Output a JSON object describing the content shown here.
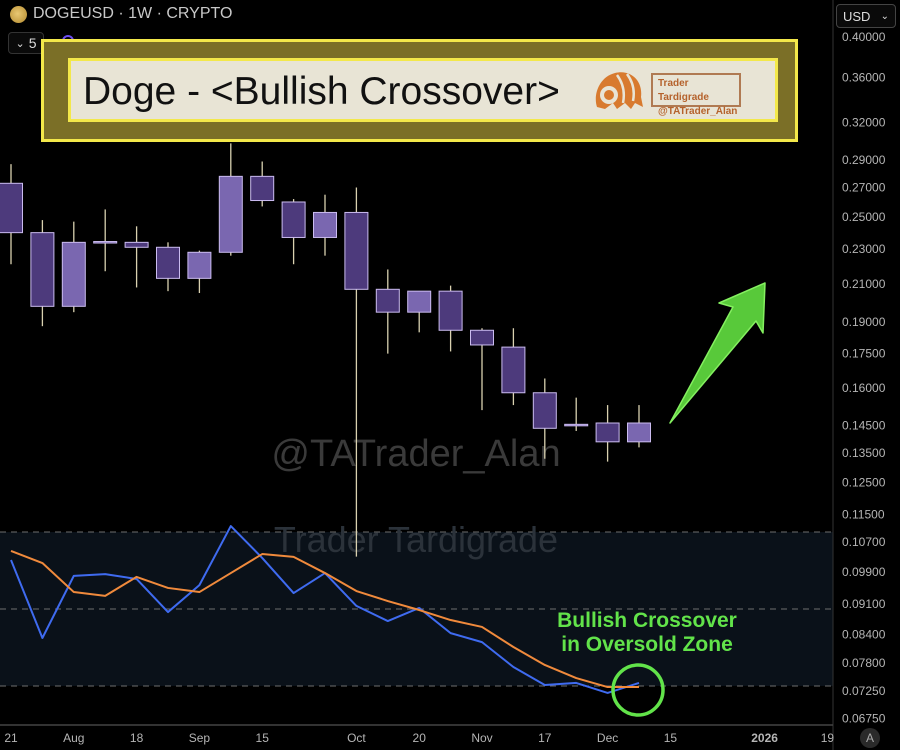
{
  "header": {
    "symbol_line": "DOGEUSD · 1W · CRYPTO",
    "indicator_toggle": "5",
    "currency": "USD",
    "auto_scale": "A"
  },
  "banner": {
    "title": "Doge - <Bullish Crossover>",
    "logo_line1": "Trader Tardigrade",
    "logo_line2": "@TATrader_Alan"
  },
  "watermarks": {
    "handle": "@TATrader_Alan",
    "brand": "Trader Tardigrade"
  },
  "annotation": {
    "line1": "Bullish Crossover",
    "line2": "in Oversold Zone"
  },
  "colors": {
    "bear_body": "#4d3a7c",
    "bull_body": "#7a67b0",
    "body_border": "#cbbcf0",
    "wick": "#d9d1b0",
    "fast_line": "#3f6bf0",
    "slow_line": "#f08a3c",
    "annotation": "#62e34a",
    "banner_border": "#f3e84a"
  },
  "chart_data": {
    "type": "candlestick",
    "y_scale": "log",
    "ylim": [
      0.0675,
      0.4
    ],
    "y_tick_labels": [
      "0.40000",
      "0.36000",
      "0.32000",
      "0.29000",
      "0.27000",
      "0.25000",
      "0.23000",
      "0.21000",
      "0.19000",
      "0.17500",
      "0.16000",
      "0.14500",
      "0.13500",
      "0.12500",
      "0.11500",
      "0.10700",
      "0.09900",
      "0.09100",
      "0.08400",
      "0.07800",
      "0.07250",
      "0.06750"
    ],
    "x_tick_labels": [
      {
        "date": "2025-07-21",
        "label": "21"
      },
      {
        "date": "2025-08-04",
        "label": "Aug"
      },
      {
        "date": "2025-08-18",
        "label": "18"
      },
      {
        "date": "2025-09-01",
        "label": "Sep"
      },
      {
        "date": "2025-09-15",
        "label": "15"
      },
      {
        "date": "2025-10-06",
        "label": "Oct"
      },
      {
        "date": "2025-10-20",
        "label": "20"
      },
      {
        "date": "2025-11-03",
        "label": "Nov"
      },
      {
        "date": "2025-11-17",
        "label": "17"
      },
      {
        "date": "2025-12-01",
        "label": "Dec"
      },
      {
        "date": "2025-12-15",
        "label": "15"
      },
      {
        "date": "2026-01-05",
        "label": "2026"
      },
      {
        "date": "2026-01-19",
        "label": "19"
      }
    ],
    "candles": [
      {
        "date": "2025-07-21",
        "o": 0.273,
        "h": 0.287,
        "l": 0.221,
        "c": 0.24
      },
      {
        "date": "2025-07-28",
        "o": 0.24,
        "h": 0.248,
        "l": 0.188,
        "c": 0.198
      },
      {
        "date": "2025-08-04",
        "o": 0.198,
        "h": 0.247,
        "l": 0.195,
        "c": 0.234
      },
      {
        "date": "2025-08-11",
        "o": 0.234,
        "h": 0.255,
        "l": 0.217,
        "c": 0.2345
      },
      {
        "date": "2025-08-18",
        "o": 0.234,
        "h": 0.244,
        "l": 0.208,
        "c": 0.231
      },
      {
        "date": "2025-08-25",
        "o": 0.231,
        "h": 0.234,
        "l": 0.206,
        "c": 0.213
      },
      {
        "date": "2025-09-01",
        "o": 0.213,
        "h": 0.229,
        "l": 0.205,
        "c": 0.228
      },
      {
        "date": "2025-09-08",
        "o": 0.228,
        "h": 0.303,
        "l": 0.226,
        "c": 0.278
      },
      {
        "date": "2025-09-15",
        "o": 0.278,
        "h": 0.289,
        "l": 0.257,
        "c": 0.261
      },
      {
        "date": "2025-09-22",
        "o": 0.26,
        "h": 0.262,
        "l": 0.221,
        "c": 0.237
      },
      {
        "date": "2025-09-29",
        "o": 0.237,
        "h": 0.265,
        "l": 0.226,
        "c": 0.253
      },
      {
        "date": "2025-10-06",
        "o": 0.253,
        "h": 0.27,
        "l": 0.103,
        "c": 0.207
      },
      {
        "date": "2025-10-13",
        "o": 0.207,
        "h": 0.218,
        "l": 0.175,
        "c": 0.195
      },
      {
        "date": "2025-10-20",
        "o": 0.195,
        "h": 0.206,
        "l": 0.185,
        "c": 0.206
      },
      {
        "date": "2025-10-27",
        "o": 0.206,
        "h": 0.209,
        "l": 0.176,
        "c": 0.186
      },
      {
        "date": "2025-11-03",
        "o": 0.186,
        "h": 0.187,
        "l": 0.151,
        "c": 0.179
      },
      {
        "date": "2025-11-10",
        "o": 0.178,
        "h": 0.187,
        "l": 0.153,
        "c": 0.158
      },
      {
        "date": "2025-11-17",
        "o": 0.158,
        "h": 0.164,
        "l": 0.133,
        "c": 0.144
      },
      {
        "date": "2025-11-24",
        "o": 0.145,
        "h": 0.156,
        "l": 0.143,
        "c": 0.1455
      },
      {
        "date": "2025-12-01",
        "o": 0.146,
        "h": 0.153,
        "l": 0.132,
        "c": 0.139
      },
      {
        "date": "2025-12-08",
        "o": 0.139,
        "h": 0.153,
        "l": 0.137,
        "c": 0.146
      }
    ],
    "oscillator": {
      "levels": [
        80,
        50,
        20
      ],
      "series": [
        {
          "color": "#3f6bf0",
          "values": [
            69.1,
            38.7,
            62.9,
            63.6,
            61.7,
            48.8,
            59.3,
            82.3,
            69.9,
            56.2,
            64.0,
            51.2,
            45.3,
            50.4,
            40.6,
            37.1,
            27.4,
            20.4,
            21.2,
            17.3,
            21.2
          ]
        },
        {
          "color": "#f08a3c",
          "values": [
            72.6,
            67.9,
            56.6,
            55.1,
            62.5,
            58.2,
            56.6,
            64.0,
            71.4,
            70.3,
            64.0,
            57.0,
            53.1,
            49.6,
            45.7,
            43.0,
            35.2,
            28.2,
            23.1,
            19.6,
            19.6
          ]
        }
      ]
    }
  }
}
